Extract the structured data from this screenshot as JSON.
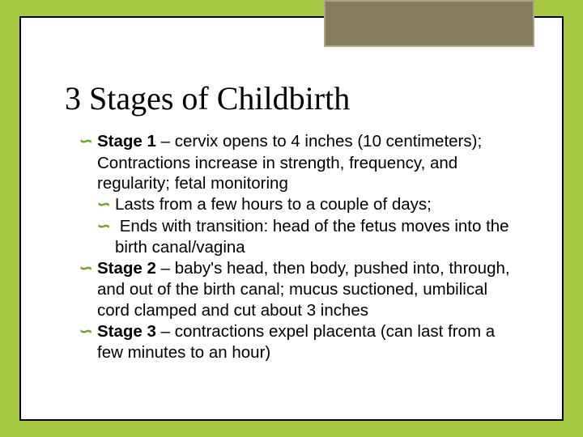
{
  "colors": {
    "background": "#a7c843",
    "card": "#ffffff",
    "frame_border": "#000000",
    "accent_fill": "#847c5c",
    "accent_border": "#a9a48a",
    "bullet_color": "#6fa22f",
    "title_color": "#000000",
    "text_color": "#000000"
  },
  "title": "3 Stages of Childbirth",
  "bullet_glyph": "∽",
  "items": [
    {
      "level": 1,
      "bold": "Stage 1 ",
      "rest": "– cervix opens to 4 inches (10 centimeters); Contractions increase in strength, frequency, and regularity;  fetal monitoring"
    },
    {
      "level": 2,
      "bold": "",
      "rest": "Lasts from a few hours to a couple of days;"
    },
    {
      "level": 2,
      "bold": "",
      "rest": " Ends with transition:  head of the fetus moves into the birth canal/vagina"
    },
    {
      "level": 1,
      "bold": "Stage 2 ",
      "rest": "– baby's head, then body, pushed into, through, and out of the birth canal; mucus suctioned, umbilical cord clamped and cut about 3 inches"
    },
    {
      "level": 1,
      "bold": "Stage 3 ",
      "rest": "– contractions expel placenta (can last from a few minutes to an hour)"
    }
  ]
}
